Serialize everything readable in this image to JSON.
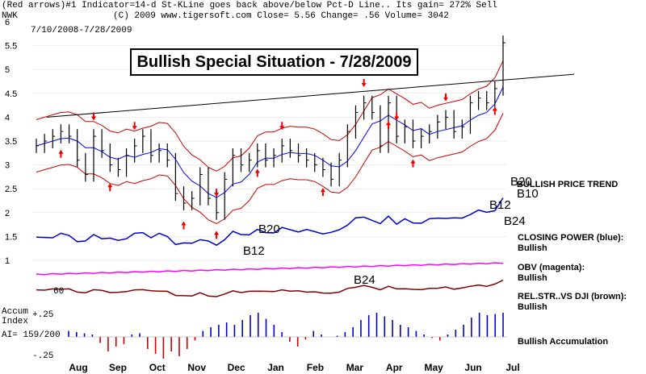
{
  "header": {
    "line1": "(Red arrows)#1 Indicator=14-d St-KLine goes back above/below Pct-D Line.. Its gain= 272% Sell",
    "ticker": "NWK",
    "line2": "(C) 2009 www.tigersoft.com     Close= 5.56  Change= .56 Volume= 3042",
    "date_range": "7/10/2008-7/28/2009"
  },
  "title_box": "Bullish Special Situation - 7/28/2009",
  "right_labels": {
    "b20_top": "B20",
    "price_trend": "BULLISH PRICE TREND",
    "b10": "B10",
    "b12": "B12",
    "b24": "B24",
    "closing_power": "CLOSING POWER (blue):",
    "closing_power_val": "Bullish",
    "obv": "OBV (magenta):",
    "obv_val": "Bullish",
    "relstr": "REL.STR..VS DJI (brown):",
    "relstr_val": "Bullish",
    "accum": "Bullish Accumulation"
  },
  "signal_labels": {
    "b20_mid": "B20",
    "b12_mid": "B12",
    "b24_mid": "B24",
    "sixty": "60"
  },
  "accum_panel": {
    "label": "Accum\nIndex",
    "ai": "AI= 159/200",
    "plus": "+.25",
    "minus": "-.25"
  },
  "chart_data": {
    "type": "line",
    "title": "Bullish Special Situation - 7/28/2009",
    "y_ticks": [
      "6",
      "5.5",
      "5",
      "4.5",
      "4",
      "3.5",
      "3",
      "2.5",
      "2",
      "1.5",
      "1"
    ],
    "ylim": [
      1,
      6
    ],
    "x_tick_labels": [
      "Aug",
      "Sep",
      "Oct",
      "Nov",
      "Dec",
      "Jan",
      "Feb",
      "Mar",
      "Apr",
      "May",
      "Jun",
      "Jul"
    ],
    "price_close": [
      3.4,
      3.5,
      3.6,
      3.7,
      3.6,
      3.1,
      2.8,
      3.6,
      3.3,
      3.0,
      2.9,
      3.2,
      3.4,
      3.6,
      3.2,
      3.3,
      3.1,
      2.4,
      2.2,
      2.3,
      2.8,
      2.3,
      2.0,
      2.7,
      3.2,
      3.0,
      3.1,
      3.3,
      3.1,
      3.2,
      3.4,
      3.3,
      3.2,
      3.1,
      3.0,
      2.9,
      2.7,
      3.1,
      3.7,
      4.1,
      4.3,
      4.1,
      3.4,
      4.3,
      3.6,
      3.8,
      3.5,
      3.6,
      3.7,
      3.9,
      4.0,
      3.7,
      3.8,
      4.3,
      4.4,
      4.3,
      4.6,
      5.56
    ],
    "series": [
      {
        "name": "Closing Power",
        "color": "#0000cc"
      },
      {
        "name": "OBV",
        "color": "#ff00ff"
      },
      {
        "name": "Rel. Str. vs DJI",
        "color": "#800000"
      }
    ],
    "trend_line": {
      "from": 4.0,
      "to": 4.9
    },
    "accum_index": [
      0.05,
      0.04,
      0.03,
      0.02,
      -0.05,
      -0.12,
      -0.08,
      -0.06,
      0.02,
      0.03,
      -0.1,
      -0.14,
      -0.18,
      -0.12,
      -0.16,
      -0.1,
      -0.03,
      0.05,
      0.08,
      0.1,
      0.12,
      0.1,
      0.14,
      0.18,
      0.2,
      0.15,
      0.1,
      0.04,
      -0.04,
      -0.08,
      -0.02,
      0.05,
      0.02,
      0.0,
      0.01,
      0.04,
      0.08,
      0.14,
      0.18,
      0.2,
      0.17,
      0.14,
      0.1,
      0.08,
      0.05,
      0.02,
      -0.01,
      -0.03,
      0.02,
      0.06,
      0.1,
      0.16,
      0.2,
      0.18,
      0.19,
      0.2
    ],
    "colors": {
      "up": "#0000cc",
      "down": "#cc0000",
      "bb": "#cc0000",
      "ma": "#0000ff",
      "trend": "#000000"
    }
  }
}
